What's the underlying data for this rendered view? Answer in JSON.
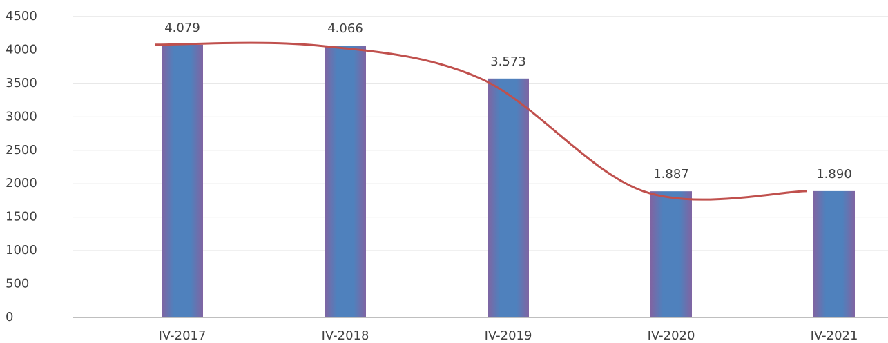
{
  "chart_data": {
    "type": "bar",
    "categories": [
      "IV-2017",
      "IV-2018",
      "IV-2019",
      "IV-2020",
      "IV-2021"
    ],
    "values": [
      4079,
      4066,
      3573,
      1887,
      1890
    ],
    "value_labels": [
      "4.079",
      "4.066",
      "3.573",
      "1.887",
      "1.890"
    ],
    "color": "#4f81bd",
    "edge_color": "#8064a2",
    "trendline_color": "#c0504d",
    "ylim": [
      0,
      4500
    ],
    "yticks": [
      0,
      500,
      1000,
      1500,
      2000,
      2500,
      3000,
      3500,
      4000,
      4500
    ],
    "grid": true
  }
}
